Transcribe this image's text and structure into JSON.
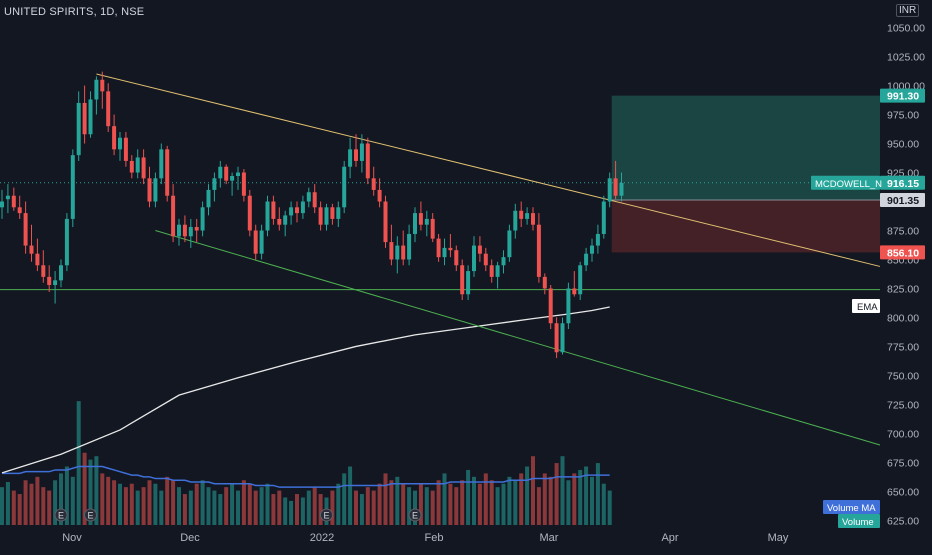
{
  "header": {
    "symbol_title": "UNITED SPIRITS, 1D, NSE",
    "currency": "INR"
  },
  "colors": {
    "background": "#131722",
    "up": "#26a69a",
    "down": "#ef5350",
    "trendline": "#e0c070",
    "support": "#4caf50",
    "ema": "#e8e8e8",
    "volume_ma": "#3f6fd8",
    "profit_zone": "#1d4a47",
    "loss_zone": "#4a2128"
  },
  "chart_data": {
    "type": "candlestick",
    "title": "UNITED SPIRITS, 1D, NSE",
    "y_axis": {
      "ticks": [
        1050,
        1025,
        1000,
        975,
        950,
        925,
        900,
        875,
        850,
        825,
        800,
        775,
        750,
        725,
        700,
        675,
        650,
        625
      ],
      "tick_labels": [
        "1050.00",
        "1025.00",
        "1000.00",
        "975.00",
        "950.00",
        "925.00",
        "900.00",
        "875.00",
        "850.00",
        "825.00",
        "800.00",
        "775.00",
        "750.00",
        "725.00",
        "700.00",
        "675.00",
        "650.00",
        "625.00"
      ],
      "range": [
        621,
        1060
      ]
    },
    "x_axis": {
      "labels": [
        "Nov",
        "Dec",
        "2022",
        "Feb",
        "Mar",
        "Apr",
        "May"
      ],
      "dates": [
        "2021-11-01",
        "2021-12-01",
        "2022-01-01",
        "2022-02-01",
        "2022-03-01",
        "2022-04-01",
        "2022-05-01"
      ]
    },
    "candles": [
      {
        "o": 895,
        "h": 910,
        "l": 885,
        "c": 900
      },
      {
        "o": 902,
        "h": 915,
        "l": 890,
        "c": 905
      },
      {
        "o": 905,
        "h": 912,
        "l": 892,
        "c": 895
      },
      {
        "o": 895,
        "h": 905,
        "l": 885,
        "c": 890
      },
      {
        "o": 890,
        "h": 900,
        "l": 855,
        "c": 862
      },
      {
        "o": 862,
        "h": 880,
        "l": 848,
        "c": 855
      },
      {
        "o": 855,
        "h": 868,
        "l": 840,
        "c": 845
      },
      {
        "o": 845,
        "h": 858,
        "l": 830,
        "c": 835
      },
      {
        "o": 835,
        "h": 845,
        "l": 822,
        "c": 828
      },
      {
        "o": 828,
        "h": 840,
        "l": 812,
        "c": 832
      },
      {
        "o": 832,
        "h": 850,
        "l": 826,
        "c": 845
      },
      {
        "o": 845,
        "h": 890,
        "l": 840,
        "c": 885
      },
      {
        "o": 885,
        "h": 945,
        "l": 878,
        "c": 940
      },
      {
        "o": 940,
        "h": 995,
        "l": 935,
        "c": 985
      },
      {
        "o": 985,
        "h": 1000,
        "l": 950,
        "c": 958
      },
      {
        "o": 958,
        "h": 995,
        "l": 955,
        "c": 988
      },
      {
        "o": 988,
        "h": 1008,
        "l": 975,
        "c": 1005
      },
      {
        "o": 1005,
        "h": 1012,
        "l": 980,
        "c": 995
      },
      {
        "o": 995,
        "h": 1002,
        "l": 960,
        "c": 965
      },
      {
        "o": 965,
        "h": 975,
        "l": 940,
        "c": 945
      },
      {
        "o": 945,
        "h": 960,
        "l": 935,
        "c": 955
      },
      {
        "o": 955,
        "h": 960,
        "l": 930,
        "c": 935
      },
      {
        "o": 935,
        "h": 940,
        "l": 920,
        "c": 925
      },
      {
        "o": 925,
        "h": 945,
        "l": 920,
        "c": 938
      },
      {
        "o": 938,
        "h": 945,
        "l": 915,
        "c": 920
      },
      {
        "o": 920,
        "h": 930,
        "l": 895,
        "c": 900
      },
      {
        "o": 900,
        "h": 925,
        "l": 895,
        "c": 920
      },
      {
        "o": 920,
        "h": 950,
        "l": 915,
        "c": 945
      },
      {
        "o": 945,
        "h": 948,
        "l": 900,
        "c": 905
      },
      {
        "o": 905,
        "h": 915,
        "l": 865,
        "c": 870
      },
      {
        "o": 870,
        "h": 885,
        "l": 862,
        "c": 880
      },
      {
        "o": 880,
        "h": 888,
        "l": 865,
        "c": 870
      },
      {
        "o": 870,
        "h": 885,
        "l": 860,
        "c": 878
      },
      {
        "o": 878,
        "h": 885,
        "l": 865,
        "c": 875
      },
      {
        "o": 875,
        "h": 900,
        "l": 870,
        "c": 895
      },
      {
        "o": 895,
        "h": 915,
        "l": 888,
        "c": 910
      },
      {
        "o": 910,
        "h": 925,
        "l": 900,
        "c": 920
      },
      {
        "o": 920,
        "h": 935,
        "l": 912,
        "c": 930
      },
      {
        "o": 930,
        "h": 932,
        "l": 915,
        "c": 918
      },
      {
        "o": 918,
        "h": 925,
        "l": 905,
        "c": 922
      },
      {
        "o": 922,
        "h": 930,
        "l": 910,
        "c": 925
      },
      {
        "o": 925,
        "h": 928,
        "l": 900,
        "c": 905
      },
      {
        "o": 905,
        "h": 910,
        "l": 870,
        "c": 875
      },
      {
        "o": 875,
        "h": 880,
        "l": 850,
        "c": 855
      },
      {
        "o": 855,
        "h": 880,
        "l": 850,
        "c": 875
      },
      {
        "o": 875,
        "h": 905,
        "l": 870,
        "c": 900
      },
      {
        "o": 900,
        "h": 905,
        "l": 880,
        "c": 885
      },
      {
        "o": 885,
        "h": 895,
        "l": 875,
        "c": 880
      },
      {
        "o": 880,
        "h": 892,
        "l": 870,
        "c": 888
      },
      {
        "o": 888,
        "h": 900,
        "l": 880,
        "c": 895
      },
      {
        "o": 895,
        "h": 900,
        "l": 882,
        "c": 890
      },
      {
        "o": 890,
        "h": 905,
        "l": 885,
        "c": 900
      },
      {
        "o": 900,
        "h": 912,
        "l": 895,
        "c": 908
      },
      {
        "o": 908,
        "h": 915,
        "l": 890,
        "c": 895
      },
      {
        "o": 895,
        "h": 900,
        "l": 875,
        "c": 880
      },
      {
        "o": 880,
        "h": 898,
        "l": 875,
        "c": 895
      },
      {
        "o": 895,
        "h": 898,
        "l": 880,
        "c": 885
      },
      {
        "o": 885,
        "h": 900,
        "l": 878,
        "c": 895
      },
      {
        "o": 895,
        "h": 935,
        "l": 890,
        "c": 930
      },
      {
        "o": 930,
        "h": 955,
        "l": 920,
        "c": 945
      },
      {
        "o": 945,
        "h": 958,
        "l": 930,
        "c": 935
      },
      {
        "o": 935,
        "h": 958,
        "l": 925,
        "c": 950
      },
      {
        "o": 950,
        "h": 955,
        "l": 915,
        "c": 920
      },
      {
        "o": 920,
        "h": 930,
        "l": 905,
        "c": 910
      },
      {
        "o": 910,
        "h": 920,
        "l": 895,
        "c": 900
      },
      {
        "o": 900,
        "h": 905,
        "l": 860,
        "c": 865
      },
      {
        "o": 865,
        "h": 880,
        "l": 845,
        "c": 850
      },
      {
        "o": 850,
        "h": 870,
        "l": 838,
        "c": 862
      },
      {
        "o": 862,
        "h": 875,
        "l": 845,
        "c": 850
      },
      {
        "o": 850,
        "h": 880,
        "l": 845,
        "c": 872
      },
      {
        "o": 872,
        "h": 895,
        "l": 865,
        "c": 890
      },
      {
        "o": 890,
        "h": 900,
        "l": 875,
        "c": 880
      },
      {
        "o": 880,
        "h": 892,
        "l": 870,
        "c": 885
      },
      {
        "o": 885,
        "h": 890,
        "l": 865,
        "c": 868
      },
      {
        "o": 868,
        "h": 872,
        "l": 848,
        "c": 852
      },
      {
        "o": 852,
        "h": 868,
        "l": 845,
        "c": 860
      },
      {
        "o": 860,
        "h": 872,
        "l": 852,
        "c": 858
      },
      {
        "o": 858,
        "h": 862,
        "l": 840,
        "c": 845
      },
      {
        "o": 845,
        "h": 850,
        "l": 815,
        "c": 820
      },
      {
        "o": 820,
        "h": 845,
        "l": 815,
        "c": 840
      },
      {
        "o": 840,
        "h": 870,
        "l": 835,
        "c": 862
      },
      {
        "o": 862,
        "h": 870,
        "l": 848,
        "c": 855
      },
      {
        "o": 855,
        "h": 860,
        "l": 840,
        "c": 845
      },
      {
        "o": 845,
        "h": 850,
        "l": 830,
        "c": 835
      },
      {
        "o": 835,
        "h": 848,
        "l": 825,
        "c": 845
      },
      {
        "o": 845,
        "h": 858,
        "l": 838,
        "c": 852
      },
      {
        "o": 852,
        "h": 880,
        "l": 848,
        "c": 875
      },
      {
        "o": 875,
        "h": 898,
        "l": 868,
        "c": 892
      },
      {
        "o": 892,
        "h": 900,
        "l": 878,
        "c": 885
      },
      {
        "o": 885,
        "h": 895,
        "l": 880,
        "c": 890
      },
      {
        "o": 890,
        "h": 895,
        "l": 875,
        "c": 880
      },
      {
        "o": 880,
        "h": 890,
        "l": 830,
        "c": 835
      },
      {
        "o": 835,
        "h": 838,
        "l": 820,
        "c": 825
      },
      {
        "o": 825,
        "h": 828,
        "l": 790,
        "c": 795
      },
      {
        "o": 795,
        "h": 800,
        "l": 765,
        "c": 770
      },
      {
        "o": 770,
        "h": 800,
        "l": 768,
        "c": 795
      },
      {
        "o": 795,
        "h": 830,
        "l": 790,
        "c": 825
      },
      {
        "o": 825,
        "h": 840,
        "l": 818,
        "c": 820
      },
      {
        "o": 820,
        "h": 848,
        "l": 815,
        "c": 845
      },
      {
        "o": 845,
        "h": 860,
        "l": 840,
        "c": 855
      },
      {
        "o": 855,
        "h": 868,
        "l": 848,
        "c": 862
      },
      {
        "o": 862,
        "h": 880,
        "l": 855,
        "c": 872
      },
      {
        "o": 872,
        "h": 905,
        "l": 868,
        "c": 900
      },
      {
        "o": 900,
        "h": 925,
        "l": 895,
        "c": 920
      },
      {
        "o": 920,
        "h": 935,
        "l": 902,
        "c": 905
      },
      {
        "o": 905,
        "h": 925,
        "l": 900,
        "c": 916
      }
    ],
    "volume": [
      22,
      25,
      20,
      18,
      26,
      24,
      28,
      22,
      20,
      26,
      30,
      34,
      28,
      72,
      42,
      38,
      40,
      30,
      28,
      26,
      24,
      22,
      24,
      20,
      22,
      26,
      24,
      20,
      28,
      26,
      22,
      18,
      20,
      24,
      26,
      22,
      20,
      18,
      22,
      24,
      20,
      26,
      24,
      20,
      22,
      24,
      18,
      20,
      16,
      14,
      18,
      16,
      20,
      22,
      18,
      16,
      20,
      24,
      30,
      34,
      20,
      18,
      22,
      20,
      24,
      30,
      26,
      28,
      24,
      22,
      20,
      24,
      22,
      20,
      26,
      30,
      24,
      22,
      26,
      32,
      28,
      24,
      30,
      26,
      22,
      24,
      28,
      26,
      30,
      34,
      40,
      22,
      30,
      28,
      36,
      40,
      26,
      30,
      32,
      34,
      28,
      36,
      24,
      20
    ],
    "volume_ma": [
      30,
      30,
      30,
      30,
      31,
      31,
      31,
      31,
      31,
      32,
      32,
      32,
      33,
      34,
      34,
      34,
      34,
      34,
      33,
      32,
      31,
      30,
      29,
      29,
      28,
      28,
      27,
      27,
      27,
      26,
      26,
      26,
      25,
      25,
      25,
      25,
      24,
      24,
      24,
      24,
      24,
      24,
      24,
      23,
      23,
      23,
      23,
      22,
      22,
      22,
      22,
      22,
      22,
      22,
      22,
      22,
      22,
      22,
      23,
      23,
      23,
      23,
      23,
      23,
      23,
      23,
      24,
      24,
      24,
      24,
      24,
      24,
      24,
      24,
      24,
      24,
      25,
      25,
      25,
      25,
      25,
      25,
      25,
      25,
      25,
      25,
      26,
      26,
      26,
      26,
      27,
      27,
      27,
      27,
      28,
      28,
      28,
      28,
      28,
      29,
      29,
      29,
      29,
      29
    ],
    "ema_series": [
      {
        "i": 0,
        "v": 666
      },
      {
        "i": 10,
        "v": 682
      },
      {
        "i": 20,
        "v": 703
      },
      {
        "i": 30,
        "v": 733
      },
      {
        "i": 40,
        "v": 748
      },
      {
        "i": 50,
        "v": 762
      },
      {
        "i": 60,
        "v": 775
      },
      {
        "i": 70,
        "v": 785
      },
      {
        "i": 80,
        "v": 792
      },
      {
        "i": 90,
        "v": 799
      },
      {
        "i": 96,
        "v": 803
      },
      {
        "i": 100,
        "v": 806
      },
      {
        "i": 103,
        "v": 809
      }
    ],
    "drawings": {
      "trendline_resistance": {
        "from": {
          "i": 16,
          "v": 1010
        },
        "to": {
          "i": 194,
          "v": 844
        }
      },
      "trendline_support": {
        "from": {
          "i": 26,
          "v": 875
        },
        "to": {
          "i": 194,
          "v": 690
        }
      },
      "horizontal_support": 824,
      "position": {
        "entry": 901.35,
        "target": 991.3,
        "stop": 856.1,
        "start_i": 103,
        "end_i": 194
      }
    },
    "price_labels": [
      {
        "text": "991.30",
        "value": 991.3,
        "kind": "target"
      },
      {
        "text": "916.15",
        "value": 916.15,
        "kind": "last"
      },
      {
        "text": "901.35",
        "value": 901.35,
        "kind": "entry"
      },
      {
        "text": "856.10",
        "value": 856.1,
        "kind": "stop"
      }
    ],
    "symbol_tag": "MCDOWELL_N",
    "indicator_labels": {
      "ema": "EMA",
      "volume_ma": "Volume MA",
      "volume": "Volume"
    },
    "event_markers": [
      "E",
      "E",
      "E",
      "E"
    ],
    "grid": false
  }
}
